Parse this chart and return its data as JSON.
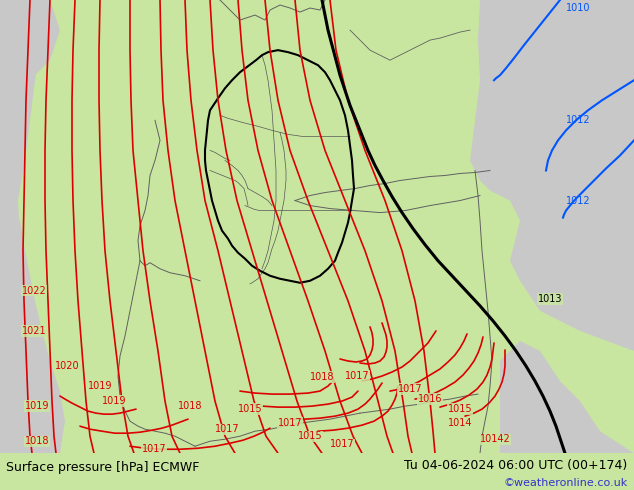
{
  "title_left": "Surface pressure [hPa] ECMWF",
  "title_right": "Tu 04-06-2024 06:00 UTC (00+174)",
  "credit": "©weatheronline.co.uk",
  "land_color": "#c8e6a0",
  "sea_color": "#c8c8c8",
  "sea_color2": "#b8c8b8",
  "border_de_color": "#000000",
  "border_neighbor_color": "#606060",
  "isobar_red": "#dd0000",
  "isobar_blue": "#0055ff",
  "isobar_black": "#000000",
  "label_red": "#dd0000",
  "label_blue": "#0055ff",
  "label_black": "#000000",
  "bottom_bar_color": "#c8e6a0",
  "text_color": "#000000",
  "credit_color": "#3333cc",
  "figsize": [
    6.34,
    4.9
  ],
  "dpi": 100
}
